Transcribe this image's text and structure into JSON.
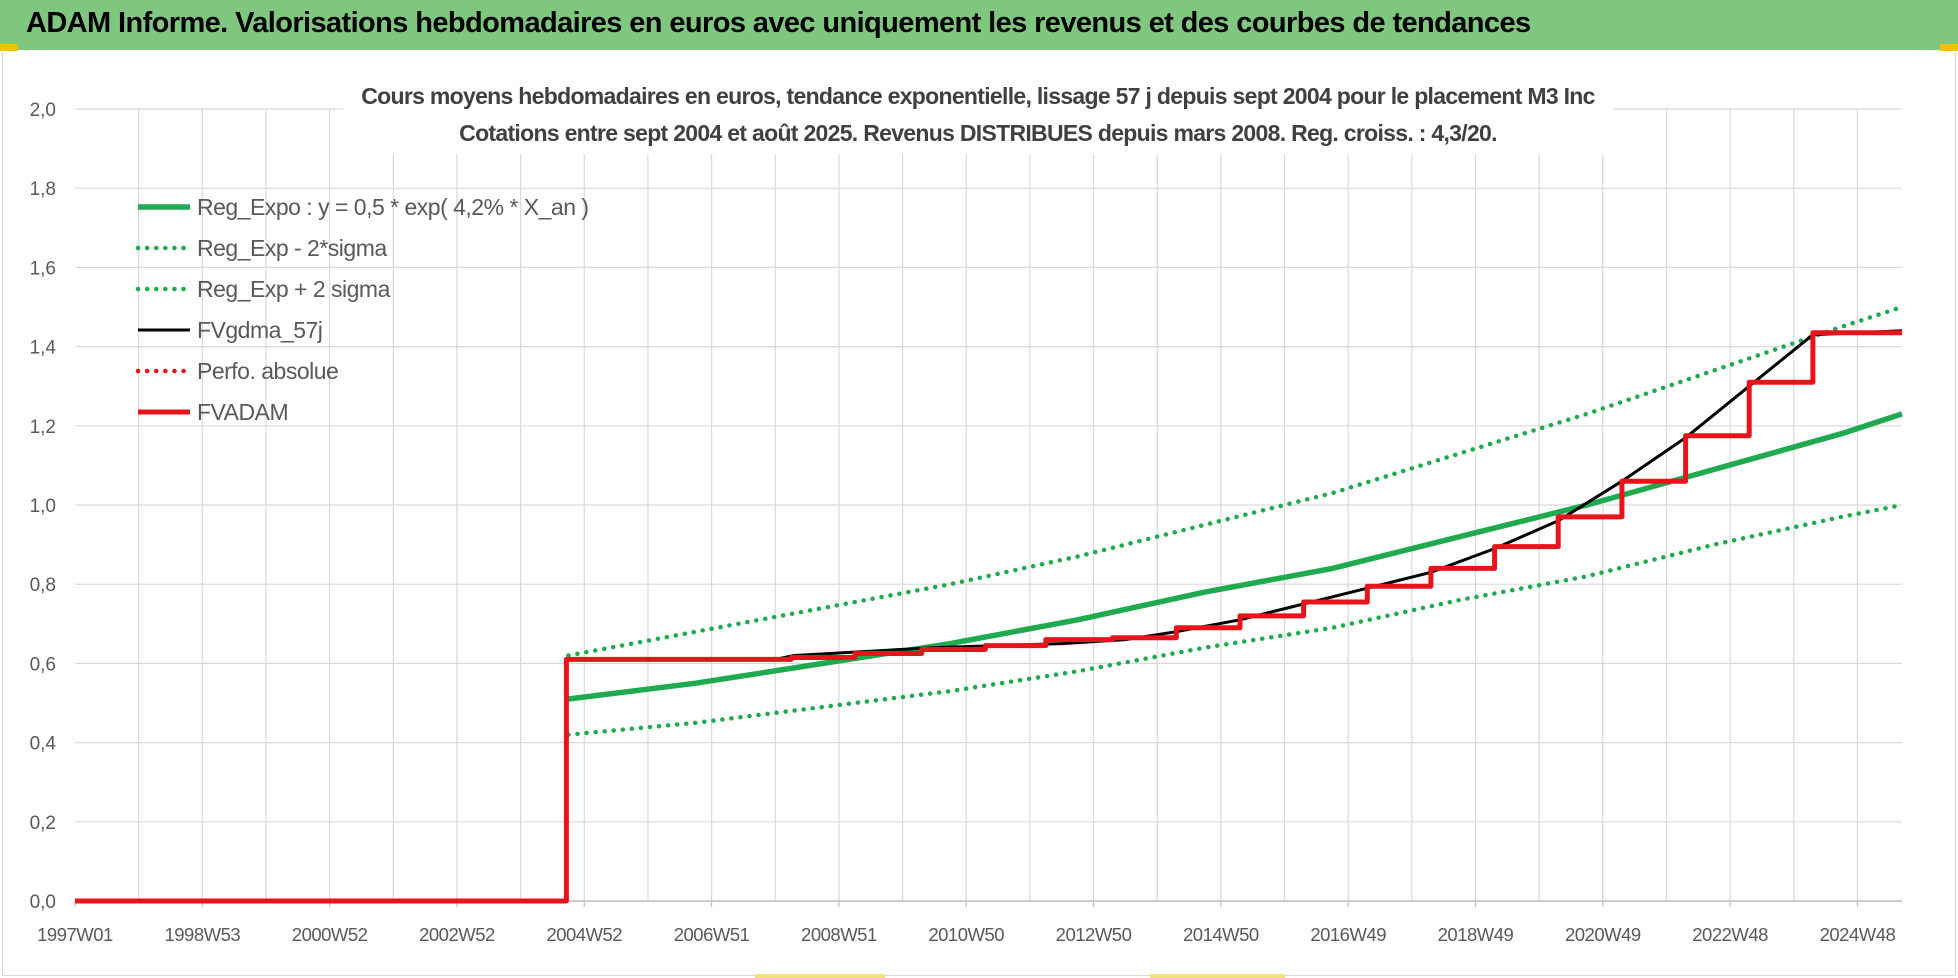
{
  "header": {
    "title": "ADAM Informe. Valorisations hebdomadaires en euros avec uniquement les revenus et des courbes de tendances"
  },
  "chart_data": {
    "type": "line",
    "title": "Cours moyens hebdomadaires en euros, tendance exponentielle, lissage 57 j depuis sept 2004 pour le placement M3 Inc",
    "subtitle": "Cotations entre sept 2004 et août 2025. Revenus DISTRIBUES depuis mars 2008. Reg. croiss. : 4,3/20.",
    "xlabel": "",
    "ylabel": "",
    "ylim": [
      0,
      2
    ],
    "y_ticks": [
      "0,0",
      "0,2",
      "0,4",
      "0,6",
      "0,8",
      "1,0",
      "1,2",
      "1,4",
      "1,6",
      "1,8",
      "2,0"
    ],
    "x_range_years": [
      1997.0,
      2025.7
    ],
    "x_ticks": [
      {
        "label": "1997W01",
        "x": 1997.0
      },
      {
        "label": "1998W53",
        "x": 1999.0
      },
      {
        "label": "2000W52",
        "x": 2001.0
      },
      {
        "label": "2002W52",
        "x": 2003.0
      },
      {
        "label": "2004W52",
        "x": 2005.0
      },
      {
        "label": "2006W51",
        "x": 2007.0
      },
      {
        "label": "2008W51",
        "x": 2009.0
      },
      {
        "label": "2010W50",
        "x": 2011.0
      },
      {
        "label": "2012W50",
        "x": 2013.0
      },
      {
        "label": "2014W50",
        "x": 2015.0
      },
      {
        "label": "2016W49",
        "x": 2017.0
      },
      {
        "label": "2018W49",
        "x": 2019.0
      },
      {
        "label": "2020W49",
        "x": 2021.0
      },
      {
        "label": "2022W48",
        "x": 2023.0
      },
      {
        "label": "2024W48",
        "x": 2025.0
      }
    ],
    "grid": true,
    "legend_position": "top-left",
    "series": [
      {
        "name": "Reg_Expo : y = 0,5 * exp( 4,2% *  X_an )",
        "style": "solid-thick",
        "color": "#1faa50",
        "x": [
          2004.75,
          2006.75,
          2008.75,
          2010.75,
          2012.75,
          2014.75,
          2016.75,
          2018.75,
          2020.75,
          2022.75,
          2024.75,
          2025.7
        ],
        "values": [
          0.51,
          0.55,
          0.6,
          0.65,
          0.71,
          0.78,
          0.84,
          0.92,
          1.0,
          1.09,
          1.18,
          1.23
        ]
      },
      {
        "name": "Reg_Exp - 2*sigma",
        "style": "dotted",
        "color": "#1faa50",
        "x": [
          2004.75,
          2006.75,
          2008.75,
          2010.75,
          2012.75,
          2014.75,
          2016.75,
          2018.75,
          2020.75,
          2022.75,
          2024.75,
          2025.7
        ],
        "values": [
          0.42,
          0.45,
          0.49,
          0.53,
          0.58,
          0.64,
          0.69,
          0.76,
          0.82,
          0.9,
          0.97,
          1.0
        ]
      },
      {
        "name": "Reg_Exp + 2 sigma",
        "style": "dotted",
        "color": "#1faa50",
        "x": [
          2004.75,
          2006.75,
          2008.75,
          2010.75,
          2012.75,
          2014.75,
          2016.75,
          2018.75,
          2020.75,
          2022.75,
          2024.75,
          2025.7
        ],
        "values": [
          0.62,
          0.68,
          0.74,
          0.8,
          0.87,
          0.95,
          1.03,
          1.13,
          1.23,
          1.34,
          1.45,
          1.5
        ]
      },
      {
        "name": "FVgdma_57j",
        "style": "solid",
        "color": "#000000",
        "x": [
          1997.0,
          2004.72,
          2004.73,
          2008.0,
          2008.3,
          2010.5,
          2012.5,
          2013.5,
          2014.3,
          2015.3,
          2016.3,
          2017.3,
          2018.3,
          2019.3,
          2020.3,
          2021.3,
          2022.3,
          2023.3,
          2024.3,
          2025.7
        ],
        "values": [
          0.0,
          0.0,
          0.61,
          0.61,
          0.62,
          0.64,
          0.65,
          0.66,
          0.68,
          0.71,
          0.75,
          0.79,
          0.83,
          0.89,
          0.96,
          1.06,
          1.17,
          1.3,
          1.43,
          1.44
        ]
      },
      {
        "name": "Perfo. absolue",
        "style": "dotted",
        "color": "#e8141c",
        "x": [],
        "values": []
      },
      {
        "name": "FVADAM",
        "style": "step-thick",
        "color": "#e8141c",
        "x": [
          1997.0,
          2004.72,
          2004.72,
          2008.25,
          2009.25,
          2010.3,
          2011.3,
          2012.25,
          2013.3,
          2014.3,
          2015.3,
          2016.3,
          2017.3,
          2018.3,
          2019.3,
          2020.3,
          2021.3,
          2022.3,
          2023.3,
          2024.3,
          2025.7
        ],
        "values": [
          0.0,
          0.0,
          0.61,
          0.615,
          0.625,
          0.635,
          0.645,
          0.66,
          0.665,
          0.69,
          0.72,
          0.755,
          0.795,
          0.84,
          0.895,
          0.97,
          1.06,
          1.175,
          1.31,
          1.435,
          1.435
        ]
      }
    ]
  }
}
